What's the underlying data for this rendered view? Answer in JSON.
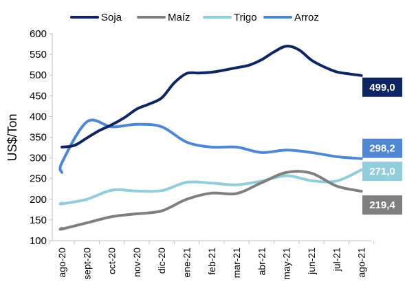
{
  "chart_data": {
    "type": "line",
    "title": "",
    "xlabel": "",
    "ylabel": "US$/Ton",
    "ylim": [
      100,
      600
    ],
    "yticks": [
      100,
      150,
      200,
      250,
      300,
      350,
      400,
      450,
      500,
      550,
      600
    ],
    "categories": [
      "ago-20",
      "sept-20",
      "oct-20",
      "nov-20",
      "dic-20",
      "ene-21",
      "feb-21",
      "mar-21",
      "abr-21",
      "may-21",
      "jun-21",
      "jul-21",
      "ago-21"
    ],
    "legend_position": "top",
    "grid": false,
    "series": [
      {
        "name": "Soja",
        "color": "#0d2560",
        "x": [
          0,
          0.5,
          1,
          1.5,
          2,
          2.5,
          3,
          3.5,
          4,
          4.5,
          5,
          5.5,
          6,
          6.5,
          7,
          7.5,
          8,
          8.5,
          9,
          9.5,
          10,
          10.5,
          11,
          11.5,
          12
        ],
        "values": [
          326,
          330,
          348,
          366,
          380,
          397,
          418,
          430,
          445,
          481,
          504,
          505,
          507,
          512,
          518,
          524,
          537,
          556,
          570,
          561,
          536,
          520,
          508,
          503,
          499
        ],
        "end_label": "499,0"
      },
      {
        "name": "Maíz",
        "color": "#7f7f7f",
        "x": [
          -0.4,
          0,
          1,
          2,
          3,
          4,
          5,
          6,
          7,
          8,
          9,
          10,
          11,
          12
        ],
        "values": [
          130,
          128,
          143,
          158,
          165,
          172,
          200,
          215,
          214,
          240,
          265,
          263,
          232,
          219.4
        ],
        "end_label": "219,4"
      },
      {
        "name": "Trigo",
        "color": "#92cddc",
        "x": [
          -0.4,
          0,
          1,
          2,
          3,
          4,
          5,
          6,
          7,
          8,
          9,
          10,
          11,
          12
        ],
        "values": [
          191,
          189,
          200,
          222,
          220,
          221,
          241,
          239,
          235,
          244,
          257,
          245,
          244,
          271
        ],
        "end_label": "271,0"
      },
      {
        "name": "Arroz",
        "color": "#4f87d3",
        "x": [
          -0.4,
          0,
          1,
          2,
          3,
          4,
          5,
          6,
          7,
          8,
          9,
          10,
          11,
          12
        ],
        "values": [
          265,
          288,
          387,
          375,
          381,
          375,
          338,
          326,
          326,
          313,
          319,
          313,
          303,
          298.2
        ],
        "end_label": "298,2"
      }
    ]
  }
}
